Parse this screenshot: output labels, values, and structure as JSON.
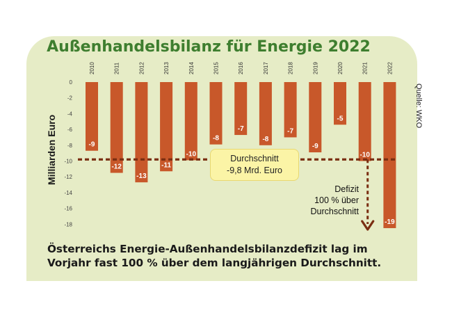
{
  "title": "Außenhandelsbilanz für Energie 2022",
  "source": "Quelle: WKO",
  "caption_line1": "Österreichs Energie-Außenhandelsbilanzdefizit lag im",
  "caption_line2": "Vorjahr fast 100 % über dem langjährigen Durchschnitt.",
  "average_box": {
    "line1": "Durchschnitt",
    "line2": "-9,8 Mrd. Euro"
  },
  "deficit_note": {
    "line1": "Defizit",
    "line2": "100 % über",
    "line3": "Durchschnitt"
  },
  "colors": {
    "bar": "#c8582a",
    "average_line": "#7a2e12",
    "title": "#3e7e2f",
    "panel": "#e6ecc6"
  },
  "chart_data": {
    "type": "bar",
    "title": "Außenhandelsbilanz für Energie 2022",
    "ylabel": "Milliarden Euro",
    "xlabel": "",
    "categories": [
      "2010",
      "2011",
      "2012",
      "2013",
      "2014",
      "2015",
      "2016",
      "2017",
      "2018",
      "2019",
      "2020",
      "2021",
      "2022"
    ],
    "values": [
      -8.7,
      -11.5,
      -12.7,
      -11.3,
      -9.9,
      -7.9,
      -6.7,
      -8.0,
      -7.0,
      -8.9,
      -5.4,
      -10.0,
      -18.5
    ],
    "data_labels": [
      "-9",
      "-12",
      "-13",
      "-11",
      "-10",
      "-8",
      "-7",
      "-8",
      "-7",
      "-9",
      "-5",
      "-10",
      "-19"
    ],
    "yticks": [
      0,
      -2,
      -4,
      -6,
      -8,
      -10,
      -12,
      -14,
      -16,
      -18
    ],
    "ylim": [
      -18.5,
      0
    ],
    "average": -9.8,
    "grid": false,
    "legend": "none"
  }
}
